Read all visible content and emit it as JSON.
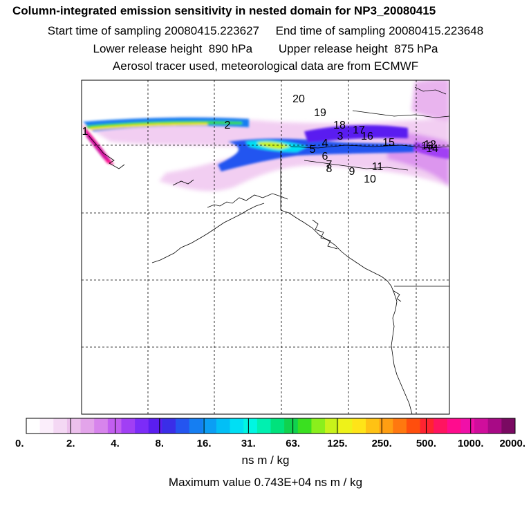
{
  "titles": {
    "line1": "Column-integrated emission sensitivity in nested domain for NP3_20080415",
    "line2": "Start time of sampling 20080415.223627     End time of sampling 20080415.223648",
    "line3": "Lower release height  890 hPa        Upper release height  875 hPa",
    "line4": "Aerosol tracer used, meteorological data are from ECMWF"
  },
  "trajectory_labels": [
    "20",
    "19",
    "18",
    "17",
    "16",
    "15",
    "14",
    "13",
    "12",
    "11",
    "10",
    "9",
    "8",
    "7",
    "6",
    "5",
    "4",
    "3",
    "2",
    "1"
  ],
  "colorbar": {
    "ticks": [
      "0.",
      "2.",
      "4.",
      "8.",
      "16.",
      "31.",
      "63.",
      "125.",
      "250.",
      "500.",
      "1000.",
      "2000."
    ],
    "colors": [
      "#ffffff",
      "#fbeefb",
      "#f4d8f4",
      "#ecc0ec",
      "#e3a4ea",
      "#d784ec",
      "#c25ef0",
      "#a13ff4",
      "#7c2cf8",
      "#5a1ef0",
      "#3a2ee8",
      "#2455f0",
      "#157ef2",
      "#0b9ef4",
      "#02bff6",
      "#00dff4",
      "#00f6e2",
      "#00f0b0",
      "#00e27c",
      "#10d24e",
      "#3ae020",
      "#8aef1c",
      "#c8f21a",
      "#eef219",
      "#ffe418",
      "#ffc214",
      "#ff9e12",
      "#ff780f",
      "#ff4e0d",
      "#ff2430",
      "#ff1460",
      "#ff0c8e",
      "#f010a8",
      "#d00e9c",
      "#a80a86",
      "#7a0a62"
    ],
    "unit": "ns m / kg",
    "max_value_text": "Maximum value  0.743E+04 ns m / kg"
  }
}
